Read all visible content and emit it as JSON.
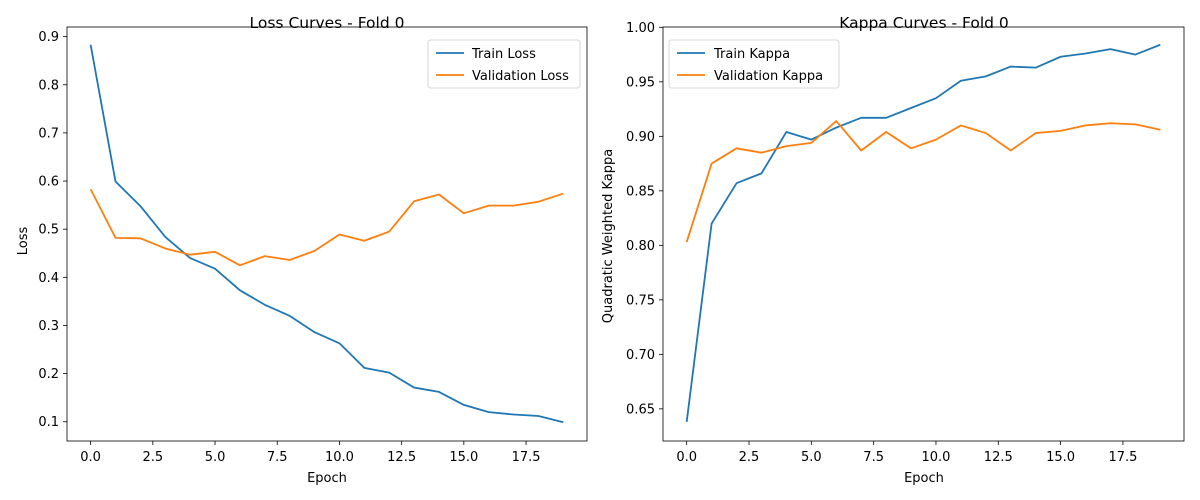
{
  "chart_data": [
    {
      "type": "line",
      "title": "Loss Curves - Fold 0",
      "xlabel": "Epoch",
      "ylabel": "Loss",
      "xlim": [
        -0.95,
        19.95
      ],
      "ylim": [
        0.06,
        0.92
      ],
      "xticks": [
        0.0,
        2.5,
        5.0,
        7.5,
        10.0,
        12.5,
        15.0,
        17.5
      ],
      "xtick_labels": [
        "0.0",
        "2.5",
        "5.0",
        "7.5",
        "10.0",
        "12.5",
        "15.0",
        "17.5"
      ],
      "yticks": [
        0.1,
        0.2,
        0.3,
        0.4,
        0.5,
        0.6,
        0.7,
        0.8,
        0.9
      ],
      "ytick_labels": [
        "0.1",
        "0.2",
        "0.3",
        "0.4",
        "0.5",
        "0.6",
        "0.7",
        "0.8",
        "0.9"
      ],
      "legend_position": "top-right",
      "grid": false,
      "x": [
        0,
        1,
        2,
        3,
        4,
        5,
        6,
        7,
        8,
        9,
        10,
        11,
        12,
        13,
        14,
        15,
        16,
        17,
        18,
        19
      ],
      "series": [
        {
          "name": "Train Loss",
          "color": "#1f77b4",
          "values": [
            0.883,
            0.599,
            0.548,
            0.484,
            0.44,
            0.418,
            0.373,
            0.343,
            0.32,
            0.286,
            0.263,
            0.212,
            0.202,
            0.171,
            0.162,
            0.135,
            0.12,
            0.115,
            0.112,
            0.099
          ]
        },
        {
          "name": "Validation Loss",
          "color": "#ff7f0e",
          "values": [
            0.583,
            0.482,
            0.481,
            0.46,
            0.447,
            0.453,
            0.425,
            0.444,
            0.436,
            0.455,
            0.489,
            0.476,
            0.495,
            0.558,
            0.572,
            0.533,
            0.549,
            0.549,
            0.557,
            0.574
          ]
        }
      ]
    },
    {
      "type": "line",
      "title": "Kappa Curves - Fold 0",
      "xlabel": "Epoch",
      "ylabel": "Quadratic Weighted Kappa",
      "xlim": [
        -0.95,
        19.95
      ],
      "ylim": [
        0.6205,
        1.0003
      ],
      "xticks": [
        0.0,
        2.5,
        5.0,
        7.5,
        10.0,
        12.5,
        15.0,
        17.5
      ],
      "xtick_labels": [
        "0.0",
        "2.5",
        "5.0",
        "7.5",
        "10.0",
        "12.5",
        "15.0",
        "17.5"
      ],
      "yticks": [
        0.65,
        0.7,
        0.75,
        0.8,
        0.85,
        0.9,
        0.95,
        1.0
      ],
      "ytick_labels": [
        "0.65",
        "0.70",
        "0.75",
        "0.80",
        "0.85",
        "0.90",
        "0.95",
        "1.00"
      ],
      "legend_position": "top-left",
      "grid": false,
      "x": [
        0,
        1,
        2,
        3,
        4,
        5,
        6,
        7,
        8,
        9,
        10,
        11,
        12,
        13,
        14,
        15,
        16,
        17,
        18,
        19
      ],
      "series": [
        {
          "name": "Train Kappa",
          "color": "#1f77b4",
          "values": [
            0.638,
            0.82,
            0.857,
            0.866,
            0.904,
            0.897,
            0.908,
            0.917,
            0.917,
            0.926,
            0.935,
            0.951,
            0.955,
            0.964,
            0.963,
            0.973,
            0.976,
            0.98,
            0.975,
            0.984
          ]
        },
        {
          "name": "Validation Kappa",
          "color": "#ff7f0e",
          "values": [
            0.803,
            0.875,
            0.889,
            0.885,
            0.891,
            0.894,
            0.914,
            0.887,
            0.904,
            0.889,
            0.897,
            0.91,
            0.903,
            0.887,
            0.903,
            0.905,
            0.91,
            0.912,
            0.911,
            0.906
          ]
        }
      ]
    }
  ]
}
